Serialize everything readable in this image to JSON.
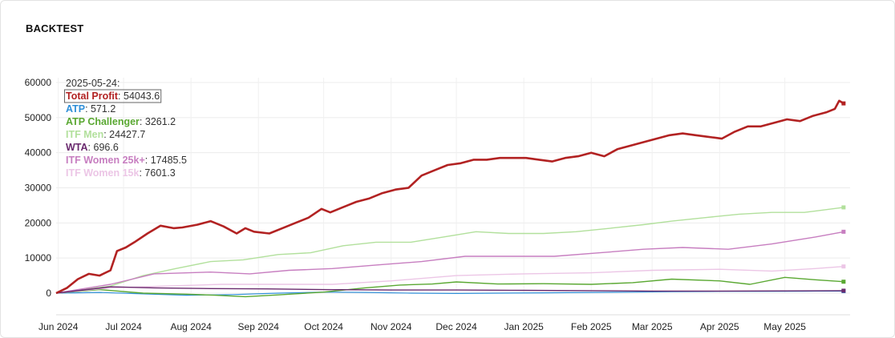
{
  "card": {
    "title": "BACKTEST"
  },
  "chart_data": {
    "type": "line",
    "title": "",
    "xlabel": "",
    "ylabel": "",
    "ylim": [
      -2000,
      60000
    ],
    "xlim": [
      "2024-05-31",
      "2025-05-31"
    ],
    "yticks": [
      0,
      10000,
      20000,
      30000,
      40000,
      50000,
      60000
    ],
    "xticks": [
      {
        "date": "2024-06-01",
        "label": "Jun 2024"
      },
      {
        "date": "2024-07-01",
        "label": "Jul 2024"
      },
      {
        "date": "2024-08-01",
        "label": "Aug 2024"
      },
      {
        "date": "2024-09-01",
        "label": "Sep 2024"
      },
      {
        "date": "2024-10-01",
        "label": "Oct 2024"
      },
      {
        "date": "2024-11-01",
        "label": "Nov 2024"
      },
      {
        "date": "2024-12-01",
        "label": "Dec 2024"
      },
      {
        "date": "2025-01-01",
        "label": "Jan 2025"
      },
      {
        "date": "2025-02-01",
        "label": "Feb 2025"
      },
      {
        "date": "2025-03-01",
        "label": "Mar 2025"
      },
      {
        "date": "2025-04-01",
        "label": "Apr 2025"
      },
      {
        "date": "2025-05-01",
        "label": "May 2025"
      }
    ],
    "grid": true,
    "legend_position": "top-left",
    "tooltip": {
      "date": "2025-05-24:"
    },
    "series": [
      {
        "name": "Total Profit",
        "display_value": "54043.6",
        "color": "#b22222",
        "stroke": 2.6,
        "x": [
          "2024-05-31",
          "2024-06-05",
          "2024-06-10",
          "2024-06-15",
          "2024-06-20",
          "2024-06-25",
          "2024-06-28",
          "2024-07-02",
          "2024-07-06",
          "2024-07-12",
          "2024-07-18",
          "2024-07-24",
          "2024-07-28",
          "2024-08-04",
          "2024-08-10",
          "2024-08-16",
          "2024-08-22",
          "2024-08-26",
          "2024-08-30",
          "2024-09-06",
          "2024-09-12",
          "2024-09-18",
          "2024-09-24",
          "2024-09-30",
          "2024-10-04",
          "2024-10-10",
          "2024-10-16",
          "2024-10-22",
          "2024-10-28",
          "2024-11-03",
          "2024-11-09",
          "2024-11-15",
          "2024-11-21",
          "2024-11-27",
          "2024-12-03",
          "2024-12-09",
          "2024-12-15",
          "2024-12-21",
          "2024-12-27",
          "2025-01-02",
          "2025-01-08",
          "2025-01-14",
          "2025-01-20",
          "2025-01-26",
          "2025-02-01",
          "2025-02-07",
          "2025-02-13",
          "2025-02-19",
          "2025-02-25",
          "2025-03-03",
          "2025-03-09",
          "2025-03-15",
          "2025-03-21",
          "2025-03-27",
          "2025-04-02",
          "2025-04-08",
          "2025-04-14",
          "2025-04-20",
          "2025-04-26",
          "2025-05-02",
          "2025-05-08",
          "2025-05-14",
          "2025-05-20",
          "2025-05-24",
          "2025-05-26",
          "2025-05-28"
        ],
        "values": [
          0,
          1500,
          4000,
          5500,
          5000,
          6500,
          12000,
          13000,
          14500,
          17000,
          19200,
          18500,
          18700,
          19500,
          20500,
          19000,
          17000,
          18500,
          17500,
          17000,
          18500,
          20000,
          21500,
          24000,
          23000,
          24500,
          26000,
          27000,
          28500,
          29500,
          30000,
          33500,
          35000,
          36500,
          37000,
          38000,
          38000,
          38500,
          38500,
          38500,
          38000,
          37500,
          38500,
          39000,
          40000,
          39000,
          41000,
          42000,
          43000,
          44000,
          45000,
          45500,
          45000,
          44500,
          44000,
          46000,
          47500,
          47500,
          48500,
          49500,
          49000,
          50500,
          51500,
          52500,
          54800,
          54043.6
        ]
      },
      {
        "name": "ATP",
        "display_value": "571.2",
        "color": "#2f8fd8",
        "stroke": 1.2,
        "x": [
          "2024-05-31",
          "2024-06-20",
          "2024-07-10",
          "2024-07-30",
          "2024-08-20",
          "2024-09-10",
          "2024-10-01",
          "2024-10-20",
          "2024-11-10",
          "2024-12-01",
          "2024-12-20",
          "2025-01-10",
          "2025-02-01",
          "2025-02-20",
          "2025-03-10",
          "2025-04-01",
          "2025-04-20",
          "2025-05-10",
          "2025-05-28"
        ],
        "values": [
          0,
          200,
          -200,
          -600,
          -400,
          0,
          300,
          200,
          0,
          -100,
          0,
          100,
          200,
          300,
          400,
          500,
          500,
          550,
          571.2
        ]
      },
      {
        "name": "ATP Challenger",
        "display_value": "3261.2",
        "color": "#5aa832",
        "stroke": 1.4,
        "x": [
          "2024-05-31",
          "2024-06-20",
          "2024-07-10",
          "2024-07-30",
          "2024-08-12",
          "2024-08-26",
          "2024-09-10",
          "2024-10-01",
          "2024-10-20",
          "2024-11-05",
          "2024-11-20",
          "2024-12-01",
          "2024-12-20",
          "2025-01-10",
          "2025-02-01",
          "2025-02-20",
          "2025-03-10",
          "2025-04-01",
          "2025-04-15",
          "2025-05-01",
          "2025-05-15",
          "2025-05-28"
        ],
        "values": [
          0,
          1000,
          0,
          -300,
          -600,
          -1000,
          -500,
          300,
          1500,
          2300,
          2600,
          3200,
          2600,
          2700,
          2500,
          3000,
          4000,
          3500,
          2500,
          4500,
          3800,
          3261.2
        ]
      },
      {
        "name": "ITF Men",
        "display_value": "24427.7",
        "color": "#b2e09c",
        "stroke": 1.4,
        "x": [
          "2024-05-31",
          "2024-06-25",
          "2024-07-10",
          "2024-07-25",
          "2024-08-10",
          "2024-08-25",
          "2024-09-10",
          "2024-09-25",
          "2024-10-10",
          "2024-10-25",
          "2024-11-10",
          "2024-11-25",
          "2024-12-10",
          "2024-12-25",
          "2025-01-10",
          "2025-01-25",
          "2025-02-10",
          "2025-02-25",
          "2025-03-10",
          "2025-03-25",
          "2025-04-10",
          "2025-04-25",
          "2025-05-10",
          "2025-05-28"
        ],
        "values": [
          0,
          2000,
          5000,
          7000,
          9000,
          9500,
          11000,
          11500,
          13500,
          14500,
          14500,
          16000,
          17500,
          17000,
          17000,
          17500,
          18500,
          19500,
          20500,
          21500,
          22500,
          23000,
          23000,
          24427.7
        ]
      },
      {
        "name": "WTA",
        "display_value": "696.6",
        "color": "#6a2a6e",
        "stroke": 1.4,
        "x": [
          "2024-05-31",
          "2024-06-25",
          "2024-07-15",
          "2024-08-10",
          "2024-09-05",
          "2024-10-01",
          "2024-11-01",
          "2024-12-01",
          "2025-01-01",
          "2025-02-01",
          "2025-03-01",
          "2025-04-01",
          "2025-05-01",
          "2025-05-28"
        ],
        "values": [
          0,
          1800,
          1500,
          1300,
          1200,
          1000,
          900,
          900,
          800,
          700,
          600,
          600,
          650,
          696.6
        ]
      },
      {
        "name": "ITF Women 25k+",
        "display_value": "17485.5",
        "color": "#c77ec0",
        "stroke": 1.4,
        "x": [
          "2024-05-31",
          "2024-06-25",
          "2024-07-15",
          "2024-08-10",
          "2024-08-28",
          "2024-09-15",
          "2024-10-05",
          "2024-10-25",
          "2024-11-15",
          "2024-12-05",
          "2024-12-25",
          "2025-01-15",
          "2025-02-05",
          "2025-02-25",
          "2025-03-15",
          "2025-04-05",
          "2025-04-25",
          "2025-05-15",
          "2025-05-28"
        ],
        "values": [
          0,
          2500,
          5500,
          6000,
          5500,
          6500,
          7000,
          8000,
          9000,
          10500,
          10500,
          10500,
          11500,
          12500,
          13000,
          12500,
          14000,
          16000,
          17485.5
        ]
      },
      {
        "name": "ITF Women 15k",
        "display_value": "7601.3",
        "color": "#ecc6e6",
        "stroke": 1.4,
        "x": [
          "2024-05-31",
          "2024-06-25",
          "2024-07-20",
          "2024-08-15",
          "2024-09-10",
          "2024-10-05",
          "2024-11-01",
          "2024-12-01",
          "2025-01-01",
          "2025-02-01",
          "2025-03-01",
          "2025-04-01",
          "2025-04-25",
          "2025-05-15",
          "2025-05-28"
        ],
        "values": [
          0,
          1500,
          2000,
          2500,
          2500,
          2500,
          3500,
          5000,
          5500,
          5800,
          6500,
          6800,
          6300,
          7000,
          7601.3
        ]
      }
    ]
  }
}
